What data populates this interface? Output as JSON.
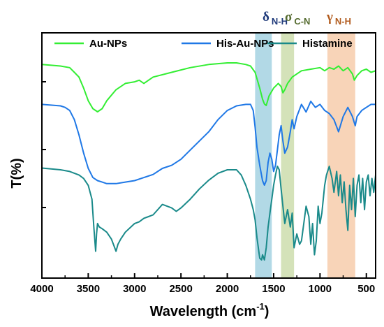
{
  "chart_data": {
    "type": "line",
    "xlabel": "Wavelength (cm",
    "xlabel_sup": "-1",
    "xlabel_close": ")",
    "ylabel": "T(%)",
    "xlim": [
      4000,
      400
    ],
    "x_reversed": true,
    "x_ticks": [
      4000,
      3500,
      3000,
      2500,
      2000,
      1500,
      1000,
      500
    ],
    "y_ticks_shown": false,
    "grid": false,
    "legend_position": "top",
    "bands": [
      {
        "name": "delta_NH",
        "symbol": "δ",
        "sub": "N-H",
        "range": [
          1700,
          1520
        ],
        "color": "#9fcfe0",
        "label_color": "#1f3a7a"
      },
      {
        "name": "sigma_CN",
        "symbol": "σ",
        "sub": "C-N",
        "range": [
          1420,
          1280
        ],
        "color": "#c9dba8",
        "label_color": "#556b2f"
      },
      {
        "name": "gamma_NH",
        "symbol": "γ",
        "sub": "N-H",
        "range": [
          920,
          620
        ],
        "color": "#f6c9a6",
        "label_color": "#b15a1c"
      }
    ],
    "series": [
      {
        "name": "Au-NPs",
        "color": "#33ee33",
        "x": [
          4000,
          3800,
          3700,
          3650,
          3600,
          3550,
          3500,
          3450,
          3400,
          3350,
          3300,
          3200,
          3100,
          3000,
          2950,
          2900,
          2850,
          2800,
          2600,
          2400,
          2200,
          2000,
          1900,
          1800,
          1750,
          1700,
          1650,
          1620,
          1600,
          1580,
          1550,
          1500,
          1450,
          1420,
          1400,
          1380,
          1350,
          1300,
          1200,
          1100,
          1000,
          950,
          900,
          850,
          800,
          750,
          700,
          650,
          630,
          600,
          550,
          500,
          450,
          400
        ],
        "y": [
          100,
          99,
          98,
          95,
          92,
          85,
          77,
          72,
          70,
          72,
          77,
          84,
          88,
          89,
          90,
          88,
          90,
          92,
          95,
          98,
          100,
          101,
          101,
          100,
          99,
          95,
          85,
          78,
          75,
          74,
          80,
          85,
          88,
          86,
          82,
          84,
          88,
          92,
          96,
          97,
          98,
          96,
          98,
          97,
          99,
          96,
          98,
          94,
          90,
          93,
          96,
          97,
          95,
          96
        ]
      },
      {
        "name": "His-Au-NPs",
        "color": "#1f78e6",
        "x": [
          4000,
          3800,
          3750,
          3700,
          3650,
          3600,
          3550,
          3500,
          3450,
          3400,
          3350,
          3300,
          3200,
          3100,
          3000,
          2900,
          2800,
          2700,
          2600,
          2500,
          2400,
          2300,
          2200,
          2100,
          2000,
          1900,
          1800,
          1750,
          1720,
          1700,
          1680,
          1650,
          1620,
          1600,
          1580,
          1560,
          1540,
          1520,
          1500,
          1480,
          1460,
          1440,
          1420,
          1400,
          1380,
          1350,
          1320,
          1300,
          1280,
          1250,
          1200,
          1150,
          1100,
          1050,
          1000,
          950,
          900,
          850,
          800,
          750,
          700,
          650,
          620,
          600,
          550,
          500,
          450,
          400
        ],
        "y": [
          80,
          79,
          78,
          76,
          70,
          60,
          48,
          38,
          32,
          30,
          29,
          28,
          28,
          29,
          30,
          32,
          34,
          38,
          40,
          44,
          50,
          56,
          62,
          70,
          76,
          79,
          80,
          80,
          76,
          65,
          52,
          40,
          30,
          27,
          30,
          42,
          48,
          44,
          36,
          40,
          50,
          60,
          66,
          56,
          48,
          52,
          62,
          70,
          64,
          72,
          80,
          75,
          82,
          78,
          80,
          76,
          74,
          70,
          62,
          72,
          78,
          72,
          66,
          72,
          76,
          78,
          80,
          80
        ]
      },
      {
        "name": "Histamine",
        "color": "#1a8a8a",
        "x": [
          4000,
          3800,
          3700,
          3600,
          3550,
          3500,
          3460,
          3440,
          3420,
          3410,
          3400,
          3380,
          3350,
          3300,
          3250,
          3200,
          3180,
          3150,
          3100,
          3000,
          2950,
          2900,
          2850,
          2800,
          2750,
          2700,
          2650,
          2600,
          2550,
          2500,
          2400,
          2300,
          2200,
          2100,
          2000,
          1900,
          1850,
          1800,
          1750,
          1720,
          1700,
          1680,
          1650,
          1630,
          1620,
          1600,
          1580,
          1560,
          1540,
          1520,
          1500,
          1480,
          1460,
          1440,
          1420,
          1400,
          1380,
          1350,
          1320,
          1300,
          1280,
          1250,
          1220,
          1200,
          1150,
          1120,
          1100,
          1080,
          1060,
          1040,
          1020,
          1000,
          980,
          950,
          930,
          900,
          870,
          850,
          820,
          800,
          780,
          760,
          740,
          720,
          700,
          680,
          660,
          640,
          620,
          600,
          580,
          560,
          540,
          520,
          500,
          480,
          460,
          440,
          420,
          400
        ],
        "y": [
          54,
          53,
          52,
          50,
          48,
          44,
          36,
          20,
          6,
          16,
          22,
          20,
          19,
          17,
          13,
          6,
          10,
          13,
          17,
          22,
          23,
          25,
          26,
          27,
          30,
          33,
          32,
          31,
          29,
          31,
          36,
          42,
          47,
          51,
          53,
          53,
          50,
          44,
          36,
          30,
          24,
          14,
          2,
          1,
          4,
          1,
          8,
          20,
          28,
          36,
          44,
          50,
          55,
          53,
          42,
          32,
          22,
          30,
          20,
          28,
          8,
          16,
          10,
          12,
          32,
          26,
          10,
          22,
          4,
          12,
          32,
          22,
          28,
          44,
          50,
          55,
          48,
          40,
          52,
          38,
          50,
          34,
          46,
          30,
          18,
          44,
          30,
          48,
          26,
          44,
          50,
          34,
          48,
          30,
          46,
          50,
          38,
          48,
          40,
          50
        ]
      }
    ]
  }
}
